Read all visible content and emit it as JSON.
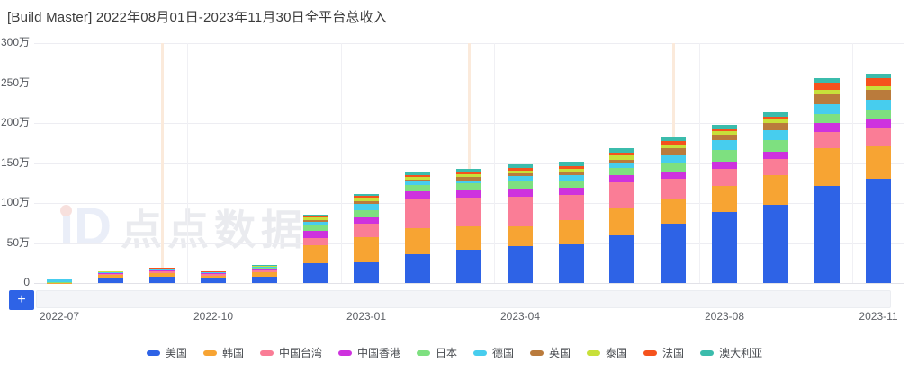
{
  "title": "[Build Master]  2022年08月01日-2023年11月30日全平台总收入",
  "watermark": {
    "logo": "iD",
    "text": "点点数据"
  },
  "controls": {
    "zoom_in_label": "+"
  },
  "chart_data": {
    "type": "bar",
    "stacked": true,
    "title": "[Build Master] 2022年08月01日-2023年11月30日全平台总收入",
    "unit": "万 (10k CNY)",
    "ylabel": "",
    "xlabel": "",
    "ylim_wan": [
      0,
      300
    ],
    "grid": true,
    "legend_position": "bottom",
    "y_tick_labels": [
      "300万",
      "250万",
      "200万",
      "150万",
      "100万",
      "50万",
      "0"
    ],
    "categories": [
      "2022-07",
      "2022-08",
      "2022-09",
      "2022-10",
      "2022-11",
      "2022-12",
      "2023-01",
      "2023-02",
      "2023-03",
      "2023-04",
      "2023-05",
      "2023-06",
      "2023-07",
      "2023-08",
      "2023-09",
      "2023-10",
      "2023-11"
    ],
    "x_tick_labels": [
      "2022-07",
      "2022-10",
      "2023-01",
      "2023-04",
      "2023-08",
      "2023-11"
    ],
    "x_tick_indices": [
      0,
      3,
      6,
      9,
      13,
      16
    ],
    "marker_line_indices": [
      2,
      8,
      12
    ],
    "marker_line_color": "#fbeadb",
    "series": [
      {
        "name": "美国",
        "color": "#2e63e6",
        "values_wan": [
          0,
          6.5,
          8,
          6,
          8,
          24.6,
          26.3,
          36.3,
          42,
          45.8,
          48.4,
          59.9,
          74.5,
          89,
          98,
          121,
          129.8
        ]
      },
      {
        "name": "韩国",
        "color": "#f7a433",
        "values_wan": [
          0.5,
          3.5,
          4.5,
          3.5,
          5,
          22.9,
          30.9,
          32.4,
          29.3,
          25.5,
          30.6,
          34.4,
          31.3,
          32,
          37,
          48.1,
          40.9
        ]
      },
      {
        "name": "中国台湾",
        "color": "#fa7d96",
        "values_wan": [
          0,
          1.5,
          2,
          1.8,
          3,
          8.6,
          17.2,
          36.3,
          35.5,
          36.6,
          31.7,
          31.7,
          24,
          21.3,
          20,
          19.8,
          24
        ]
      },
      {
        "name": "中国香港",
        "color": "#ce32de",
        "values_wan": [
          0,
          0.8,
          1.2,
          0.8,
          1.2,
          9.2,
          8,
          9.5,
          10.3,
          10.3,
          8.7,
          8.8,
          8.8,
          9.2,
          9.5,
          10.7,
          10.3
        ]
      },
      {
        "name": "日本",
        "color": "#7ee080",
        "values_wan": [
          1,
          0.5,
          0.5,
          0.5,
          1.5,
          6.3,
          9.2,
          7.6,
          7.6,
          10.3,
          9.2,
          9.2,
          11.5,
          15.3,
          14,
          11.5,
          10.7
        ]
      },
      {
        "name": "德国",
        "color": "#47cdee",
        "values_wan": [
          2.5,
          1,
          1,
          1,
          1.8,
          5.2,
          6.9,
          4.6,
          3.8,
          5,
          6.2,
          6.9,
          10.3,
          11.5,
          12,
          12.3,
          13.4
        ]
      },
      {
        "name": "英国",
        "color": "#ba7b3c",
        "values_wan": [
          0,
          0.2,
          0.3,
          0.2,
          0.3,
          2.3,
          3.4,
          3,
          3.9,
          3.8,
          3.8,
          3,
          7.7,
          7.6,
          9,
          12.3,
          12.6
        ]
      },
      {
        "name": "泰国",
        "color": "#c8e03a",
        "values_wan": [
          0,
          0.3,
          0.3,
          0.3,
          0.4,
          2.9,
          4.6,
          3.4,
          3.8,
          3.8,
          4.6,
          6.2,
          4.9,
          4.5,
          5,
          6.1,
          4.6
        ]
      },
      {
        "name": "法国",
        "color": "#f5521d",
        "values_wan": [
          0.3,
          0.4,
          1.2,
          0.6,
          0.3,
          1.7,
          2.3,
          2.3,
          2.3,
          2.7,
          3.1,
          3,
          4.6,
          2.3,
          4,
          9.2,
          9.5
        ]
      },
      {
        "name": "澳大利亚",
        "color": "#3bbcac",
        "values_wan": [
          0.7,
          0.3,
          0.5,
          0.3,
          0.5,
          2.3,
          2.3,
          3,
          4.6,
          4.9,
          5.3,
          5,
          5.7,
          5.3,
          5,
          4.9,
          6.5
        ]
      }
    ]
  }
}
